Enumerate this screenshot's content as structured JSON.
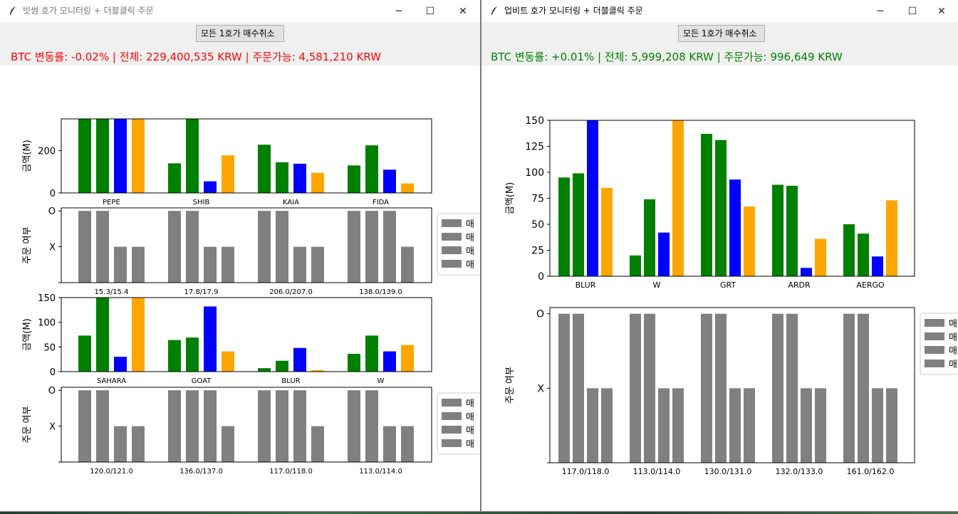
{
  "desktop": {
    "colors": {
      "win_bg": "#ffffff",
      "toolbar_bg": "#f0f0f0"
    }
  },
  "colors": {
    "green": "#008000",
    "blue": "#0000ff",
    "orange": "#ffa500",
    "gray": "#808080",
    "red_status": "#ff0000",
    "green_status": "#008000"
  },
  "windows": [
    {
      "id": "bithumb",
      "title": "빗썸 호가 모니터링 + 더블클릭 주문",
      "title_color": "#777777",
      "cancel_button": "모든 1호가 매수취소",
      "status": "BTC 변동률: -0.02% | 전체: 229,400,535 KRW | 주문가능: 4,581,210 KRW",
      "status_color": "#ff0000",
      "icon": "feather-icon",
      "controls": {
        "minimize": "minimize-icon",
        "maximize": "maximize-icon",
        "close": "close-icon"
      }
    },
    {
      "id": "upbit",
      "title": "업비트 호가 모니터링 + 더블클릭 주문",
      "title_color": "#000000",
      "cancel_button": "모든 1호가 매수취소",
      "status": "BTC 변동률: +0.01% | 전체: 5,999,208 KRW | 주문가능: 996,649 KRW",
      "status_color": "#008000",
      "icon": "feather-icon",
      "controls": {
        "minimize": "minimize-icon",
        "maximize": "maximize-icon",
        "close": "close-icon"
      }
    }
  ],
  "chart_data": [
    {
      "id": "bithumb-amount-1",
      "type": "bar",
      "ylabel": "금액(M)",
      "ylim": [
        0,
        350
      ],
      "yticks": [
        0,
        200
      ],
      "categories": [
        "PEPE",
        "SHIB",
        "KAIA",
        "FIDA"
      ],
      "bar_colors": [
        "#008000",
        "#008000",
        "#0000ff",
        "#ffa500"
      ],
      "values": [
        [
          350,
          350,
          350,
          350
        ],
        [
          140,
          350,
          55,
          178
        ],
        [
          228,
          145,
          138,
          95
        ],
        [
          130,
          225,
          110,
          45
        ]
      ]
    },
    {
      "id": "bithumb-order-1",
      "type": "bar",
      "ylabel": "주문 여부",
      "ytick_labels": [
        "X",
        "O"
      ],
      "categories": [
        "15.3/15.4",
        "17.8/17.9",
        "206.0/207.0",
        "138.0/139.0"
      ],
      "values": [
        [
          1,
          1,
          0,
          0
        ],
        [
          1,
          1,
          0,
          0
        ],
        [
          1,
          1,
          0,
          0
        ],
        [
          1,
          1,
          1,
          0
        ]
      ],
      "legend": [
        "매",
        "매",
        "매",
        "매"
      ],
      "legend_placement": "outside-right"
    },
    {
      "id": "bithumb-amount-2",
      "type": "bar",
      "ylabel": "금액(M)",
      "ylim": [
        0,
        150
      ],
      "yticks": [
        0,
        50,
        100,
        150
      ],
      "categories": [
        "SAHARA",
        "GOAT",
        "BLUR",
        "W"
      ],
      "bar_colors": [
        "#008000",
        "#008000",
        "#0000ff",
        "#ffa500"
      ],
      "values": [
        [
          73,
          150,
          30,
          150
        ],
        [
          64,
          69,
          132,
          41
        ],
        [
          7,
          22,
          48,
          3
        ],
        [
          36,
          73,
          41,
          54
        ]
      ]
    },
    {
      "id": "bithumb-order-2",
      "type": "bar",
      "ylabel": "주문 여부",
      "ytick_labels": [
        "X",
        "O"
      ],
      "categories": [
        "120.0/121.0",
        "136.0/137.0",
        "117.0/118.0",
        "113.0/114.0"
      ],
      "values": [
        [
          1,
          1,
          0,
          0
        ],
        [
          1,
          1,
          1,
          0
        ],
        [
          1,
          1,
          1,
          0
        ],
        [
          1,
          1,
          0,
          0
        ]
      ],
      "legend": [
        "매",
        "매",
        "매",
        "매"
      ],
      "legend_placement": "outside-right"
    },
    {
      "id": "upbit-amount",
      "type": "bar",
      "ylabel": "금액(M)",
      "ylim": [
        0,
        150
      ],
      "yticks": [
        0,
        25,
        50,
        75,
        100,
        125,
        150
      ],
      "categories": [
        "BLUR",
        "W",
        "GRT",
        "ARDR",
        "AERGO"
      ],
      "bar_colors": [
        "#008000",
        "#008000",
        "#0000ff",
        "#ffa500"
      ],
      "values": [
        [
          95,
          99,
          150,
          85
        ],
        [
          20,
          74,
          42,
          150
        ],
        [
          137,
          131,
          93,
          67
        ],
        [
          88,
          87,
          8,
          36
        ],
        [
          50,
          41,
          19,
          73
        ]
      ]
    },
    {
      "id": "upbit-order",
      "type": "bar",
      "ylabel": "주문 여부",
      "ytick_labels": [
        "X",
        "O"
      ],
      "categories": [
        "117.0/118.0",
        "113.0/114.0",
        "130.0/131.0",
        "132.0/133.0",
        "161.0/162.0"
      ],
      "values": [
        [
          1,
          1,
          0,
          0
        ],
        [
          1,
          1,
          0,
          0
        ],
        [
          1,
          1,
          0,
          0
        ],
        [
          1,
          1,
          0,
          0
        ],
        [
          1,
          1,
          0,
          0
        ]
      ],
      "legend": [
        "매",
        "매",
        "매",
        "매"
      ],
      "legend_placement": "outside-right"
    }
  ]
}
